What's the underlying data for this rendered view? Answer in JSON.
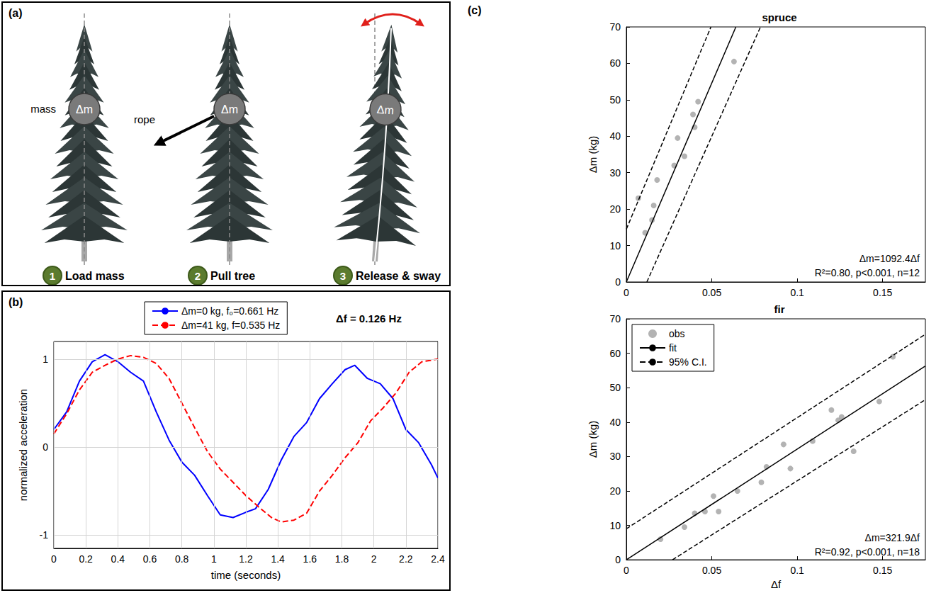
{
  "diagram": {
    "label": "(a)",
    "mass_symbol": "Δm",
    "texts": {
      "mass": "mass",
      "rope": "rope"
    },
    "steps": [
      {
        "number": 1,
        "label": "Load mass"
      },
      {
        "number": 2,
        "label": "Pull tree"
      },
      {
        "number": 3,
        "label": "Release & sway"
      }
    ]
  },
  "chart_data": [
    {
      "type": "line",
      "panel_label": "(b)",
      "xlabel": "time (seconds)",
      "ylabel": "normalized acceleration",
      "xlim": [
        0,
        2.4
      ],
      "xticks": [
        0,
        0.2,
        0.4,
        0.6,
        0.8,
        1,
        1.2,
        1.4,
        1.6,
        1.8,
        2,
        2.2,
        2.4
      ],
      "ylim": [
        -1.15,
        1.2
      ],
      "yticks": [
        -1,
        0,
        1
      ],
      "grid": true,
      "legend": "top",
      "annotations": [
        "Δf = 0.126 Hz"
      ],
      "series": [
        {
          "name": "Δm=0 kg, f₀=0.661 Hz",
          "color": "#0000ff",
          "line_style": "solid",
          "x": [
            0,
            0.08,
            0.16,
            0.24,
            0.32,
            0.4,
            0.48,
            0.56,
            0.64,
            0.72,
            0.8,
            0.88,
            0.96,
            1.04,
            1.12,
            1.2,
            1.26,
            1.34,
            1.42,
            1.5,
            1.58,
            1.66,
            1.74,
            1.82,
            1.88,
            1.96,
            2.04,
            2.12,
            2.2,
            2.28,
            2.36,
            2.4
          ],
          "values": [
            0.2,
            0.4,
            0.75,
            0.97,
            1.05,
            0.97,
            0.85,
            0.75,
            0.4,
            0.08,
            -0.17,
            -0.32,
            -0.55,
            -0.77,
            -0.8,
            -0.74,
            -0.7,
            -0.48,
            -0.15,
            0.12,
            0.28,
            0.55,
            0.72,
            0.88,
            0.93,
            0.78,
            0.72,
            0.55,
            0.2,
            0.05,
            -0.2,
            -0.35
          ]
        },
        {
          "name": "Δm=41 kg, f=0.535 Hz",
          "color": "#ff0000",
          "line_style": "dashed",
          "x": [
            0,
            0.08,
            0.16,
            0.24,
            0.32,
            0.4,
            0.48,
            0.56,
            0.64,
            0.72,
            0.8,
            0.88,
            0.96,
            1.04,
            1.12,
            1.2,
            1.28,
            1.36,
            1.42,
            1.5,
            1.58,
            1.66,
            1.74,
            1.82,
            1.9,
            1.98,
            2.06,
            2.14,
            2.22,
            2.3,
            2.4
          ],
          "values": [
            0.15,
            0.38,
            0.65,
            0.85,
            0.93,
            1.0,
            1.04,
            1.02,
            0.95,
            0.78,
            0.5,
            0.22,
            -0.05,
            -0.25,
            -0.4,
            -0.55,
            -0.68,
            -0.8,
            -0.85,
            -0.83,
            -0.75,
            -0.5,
            -0.32,
            -0.12,
            0.05,
            0.3,
            0.45,
            0.62,
            0.85,
            0.97,
            1.0
          ]
        }
      ]
    },
    {
      "type": "scatter",
      "panel_label": "(c)",
      "title": "spruce",
      "ylabel": "Δm (kg)",
      "xlim": [
        0,
        0.175
      ],
      "xticks": [
        0,
        0.05,
        0.1,
        0.15
      ],
      "ylim": [
        0,
        70
      ],
      "yticks": [
        0,
        10,
        20,
        30,
        40,
        50,
        60,
        70
      ],
      "grid": false,
      "annotations": [
        "Δm=1092.4Δf",
        "R²=0.80, p<0.001, n=12"
      ],
      "series": [
        {
          "type": "scatter",
          "color": "#a0a0a0",
          "marker": "circle",
          "x": [
            0.007,
            0.011,
            0.015,
            0.016,
            0.018,
            0.028,
            0.03,
            0.034,
            0.039,
            0.04,
            0.042,
            0.063
          ],
          "values": [
            23,
            13.5,
            17,
            21,
            28,
            32,
            39.5,
            34.5,
            46,
            42.5,
            49.5,
            60.5
          ]
        },
        {
          "type": "line",
          "color": "#000000",
          "line_style": "solid",
          "x": [
            0,
            0.0641
          ],
          "values": [
            0,
            70
          ]
        },
        {
          "type": "line",
          "color": "#000000",
          "line_style": "dashed",
          "x": [
            0,
            0.0495,
            null,
            0.012,
            0.0785
          ],
          "values": [
            14.5,
            70,
            null,
            0,
            70
          ]
        }
      ]
    },
    {
      "type": "scatter",
      "title": "fir",
      "xlabel": "Δf",
      "ylabel": "Δm (kg)",
      "xlim": [
        0,
        0.175
      ],
      "xticks": [
        0,
        0.05,
        0.1,
        0.15
      ],
      "ylim": [
        0,
        70
      ],
      "yticks": [
        0,
        10,
        20,
        30,
        40,
        50,
        60,
        70
      ],
      "grid": false,
      "legend": "upper left",
      "annotations": [
        "Δm=321.9Δf",
        "R²=0.92, p<0.001, n=18"
      ],
      "series": [
        {
          "name": "obs",
          "type": "scatter",
          "color": "#a0a0a0",
          "marker": "circle",
          "x": [
            0.02,
            0.034,
            0.04,
            0.046,
            0.051,
            0.054,
            0.065,
            0.079,
            0.082,
            0.092,
            0.096,
            0.109,
            0.12,
            0.124,
            0.126,
            0.133,
            0.148,
            0.156
          ],
          "values": [
            6,
            9.5,
            13.5,
            14,
            18.5,
            14,
            20,
            22.5,
            27,
            33.5,
            26.5,
            34.5,
            43.5,
            40.5,
            41.5,
            31.5,
            46,
            59
          ]
        },
        {
          "name": "fit",
          "type": "line",
          "color": "#000000",
          "line_style": "solid",
          "x": [
            0,
            0.175
          ],
          "values": [
            0,
            56.3
          ]
        },
        {
          "name": "95% C.I.",
          "type": "line",
          "color": "#000000",
          "line_style": "dashed",
          "x": [
            0,
            0.175,
            null,
            0.027,
            0.175
          ],
          "values": [
            9,
            65.5,
            null,
            0,
            46.5
          ]
        }
      ]
    }
  ]
}
